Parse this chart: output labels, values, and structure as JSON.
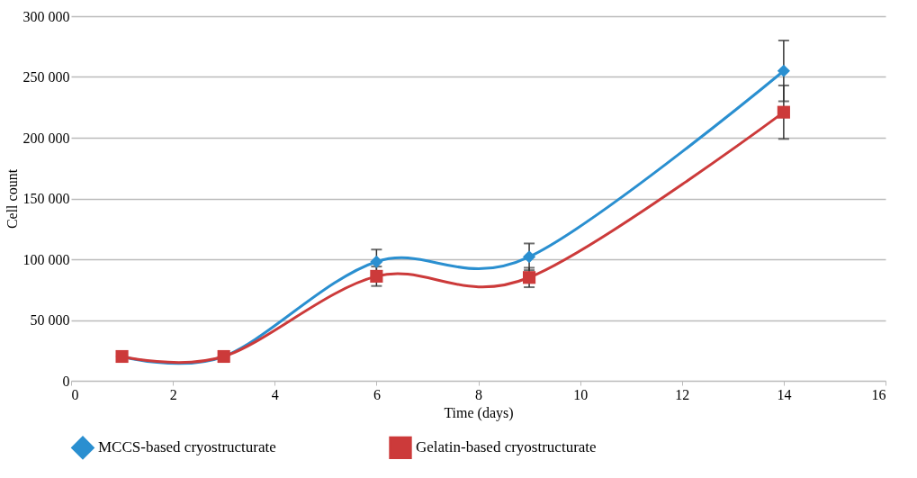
{
  "chart_data": {
    "type": "line",
    "xlabel": "Time (days)",
    "ylabel": "Cell count",
    "x": [
      1,
      3,
      6,
      9,
      14
    ],
    "series": [
      {
        "name": "MCCS-based cryostructurate",
        "color": "#2a8fd0",
        "marker": "diamond",
        "values": [
          20000,
          20000,
          98000,
          102000,
          255000
        ],
        "errors": [
          null,
          null,
          10000,
          11000,
          25000
        ]
      },
      {
        "name": "Gelatin-based cryostructurate",
        "color": "#cc3a3a",
        "marker": "square",
        "values": [
          20000,
          20000,
          86000,
          85000,
          221000
        ],
        "errors": [
          null,
          null,
          8000,
          8000,
          22000
        ]
      }
    ],
    "xlim": [
      0,
      16
    ],
    "xticks": [
      0,
      2,
      4,
      6,
      8,
      10,
      12,
      14,
      16
    ],
    "ylim": [
      0,
      300000
    ],
    "yticks": [
      0,
      {
        "value": 50000,
        "label": "50 000"
      },
      {
        "value": 100000,
        "label": "100 000"
      },
      {
        "value": 150000,
        "label": "150 000"
      },
      {
        "value": 200000,
        "label": "200 000"
      },
      {
        "value": 250000,
        "label": "250 000"
      },
      {
        "value": 300000,
        "label": "300 000"
      }
    ],
    "grid": "y",
    "legend": "bottom",
    "line_style": "solid"
  }
}
